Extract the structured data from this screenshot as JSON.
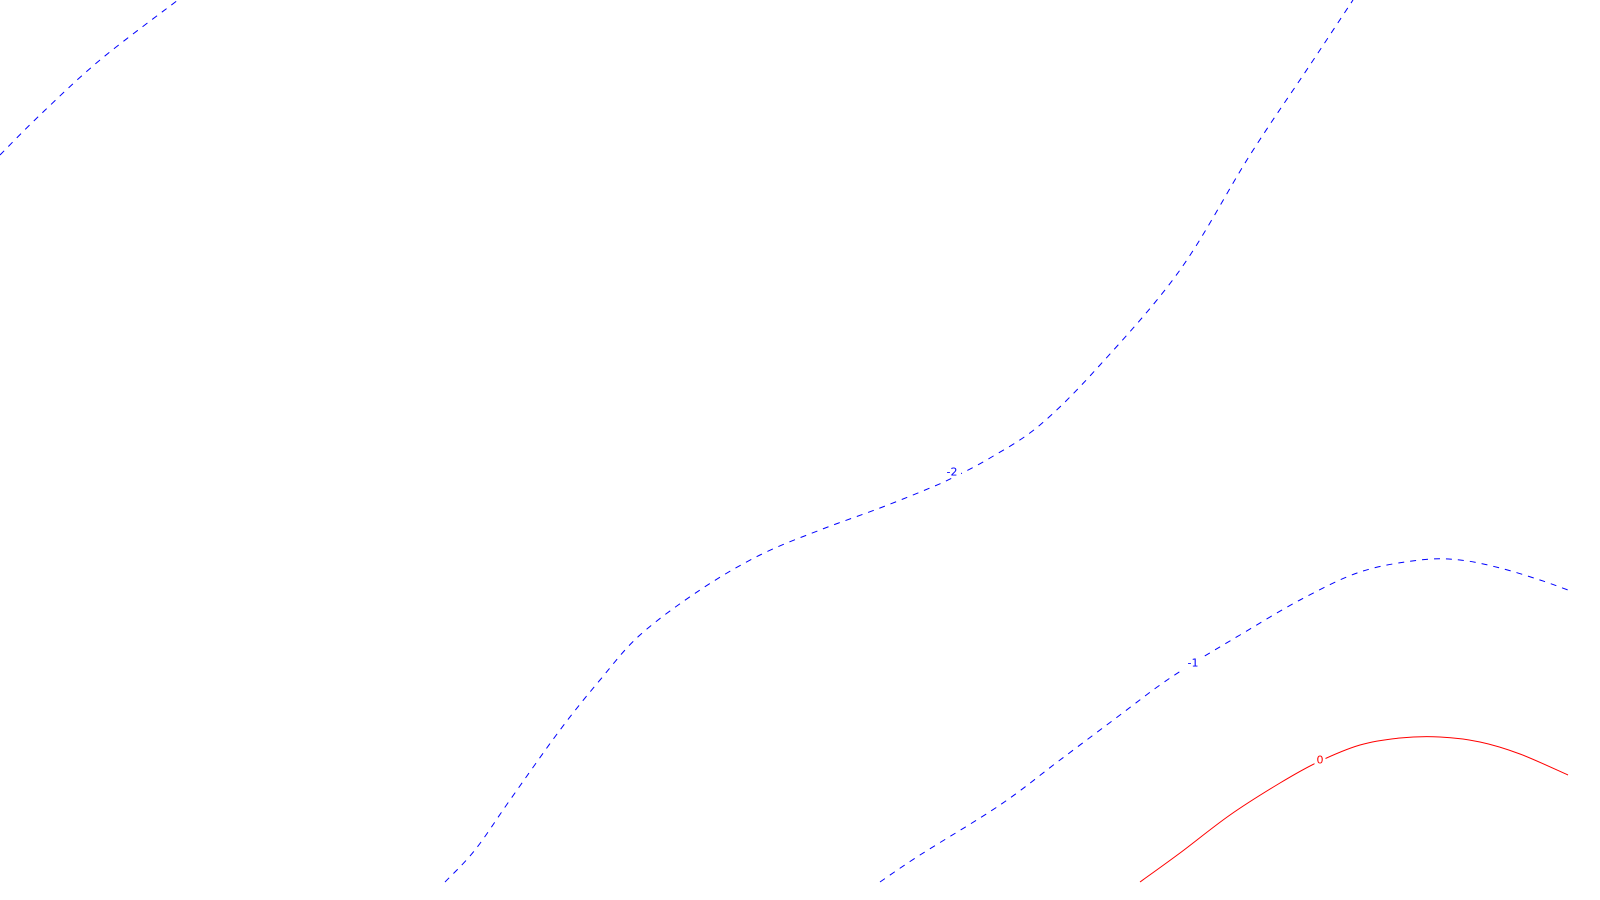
{
  "chart_data": {
    "type": "contour",
    "title": "",
    "xlabel": "",
    "ylabel": "",
    "grid": false,
    "legend": "none",
    "colors": {
      "negative": "#0000ff",
      "zero": "#ff0000"
    },
    "levels": [
      {
        "level_label": "-2",
        "value": -2,
        "color": "#0000ff",
        "linestyle": "dashed",
        "segments": [
          [
            [
              0,
              155
            ],
            [
              40,
              115
            ],
            [
              100,
              60
            ],
            [
              178,
              0
            ]
          ],
          [
            [
              445,
              882
            ],
            [
              475,
              850
            ],
            [
              510,
              800
            ],
            [
              560,
              730
            ],
            [
              600,
              680
            ],
            [
              640,
              635
            ],
            [
              700,
              590
            ],
            [
              760,
              555
            ],
            [
              820,
              530
            ],
            [
              880,
              508
            ],
            [
              930,
              488
            ],
            [
              952,
              478
            ],
            [
              990,
              458
            ],
            [
              1040,
              425
            ],
            [
              1100,
              365
            ],
            [
              1180,
              270
            ],
            [
              1250,
              155
            ],
            [
              1310,
              65
            ],
            [
              1353,
              0
            ]
          ]
        ]
      },
      {
        "level_label": "-1",
        "value": -1,
        "color": "#0000ff",
        "linestyle": "dashed",
        "segments": [
          [
            [
              880,
              882
            ],
            [
              920,
              855
            ],
            [
              1000,
              805
            ],
            [
              1060,
              760
            ],
            [
              1120,
              715
            ],
            [
              1160,
              685
            ],
            [
              1195,
              662
            ],
            [
              1240,
              635
            ],
            [
              1300,
              600
            ],
            [
              1360,
              572
            ],
            [
              1420,
              560
            ],
            [
              1460,
              560
            ],
            [
              1500,
              568
            ],
            [
              1540,
              580
            ],
            [
              1568,
              590
            ]
          ]
        ]
      },
      {
        "level_label": "0",
        "value": 0,
        "color": "#ff0000",
        "linestyle": "solid",
        "segments": [
          [
            [
              1140,
              882
            ],
            [
              1180,
              853
            ],
            [
              1230,
              815
            ],
            [
              1280,
              783
            ],
            [
              1318,
              762
            ],
            [
              1360,
              745
            ],
            [
              1400,
              738
            ],
            [
              1440,
              737
            ],
            [
              1480,
              742
            ],
            [
              1520,
              754
            ],
            [
              1568,
              775
            ]
          ]
        ]
      }
    ],
    "labels": [
      {
        "text": "-2",
        "x": 952,
        "y": 472,
        "color": "#0000ff"
      },
      {
        "text": "-1",
        "x": 1193,
        "y": 663,
        "color": "#0000ff"
      },
      {
        "text": "0",
        "x": 1320,
        "y": 760,
        "color": "#ff0000"
      }
    ]
  }
}
